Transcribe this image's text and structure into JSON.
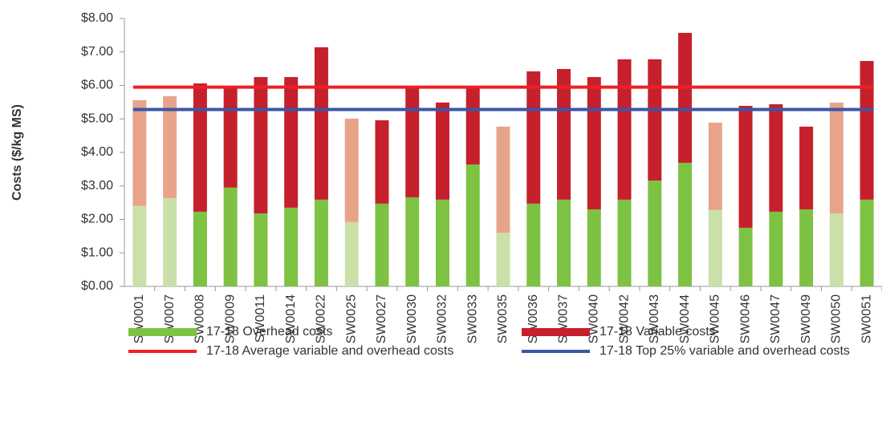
{
  "chart_data": {
    "type": "bar",
    "stacked": true,
    "ylabel": "Costs ($/kg MS)",
    "categories": [
      "SW0001",
      "SW0007",
      "SW0008",
      "SW0009",
      "SW0011",
      "SW0014",
      "SW0022",
      "SW0025",
      "SW0027",
      "SW0030",
      "SW0032",
      "SW0033",
      "SW0035",
      "SW0036",
      "SW0037",
      "SW0040",
      "SW0042",
      "SW0043",
      "SW0044",
      "SW0045",
      "SW0046",
      "SW0047",
      "SW0049",
      "SW0050",
      "SW0051"
    ],
    "series": [
      {
        "name": "17-18 Overhead costs",
        "color": "#7dc242",
        "colors": [
          "#c9e0a8",
          "#c9e0a8",
          "#7dc242",
          "#7dc242",
          "#7dc242",
          "#7dc242",
          "#7dc242",
          "#c9e0a8",
          "#7dc242",
          "#7dc242",
          "#7dc242",
          "#7dc242",
          "#c9e0a8",
          "#7dc242",
          "#7dc242",
          "#7dc242",
          "#7dc242",
          "#7dc242",
          "#7dc242",
          "#c9e0a8",
          "#7dc242",
          "#7dc242",
          "#7dc242",
          "#c9e0a8",
          "#7dc242"
        ],
        "values": [
          2.4,
          2.63,
          2.23,
          2.95,
          2.18,
          2.35,
          2.59,
          1.92,
          2.47,
          2.66,
          2.59,
          3.64,
          1.6,
          2.47,
          2.59,
          2.3,
          2.59,
          3.16,
          3.69,
          2.28,
          1.75,
          2.23,
          2.3,
          2.18,
          2.59
        ]
      },
      {
        "name": "17-18 Variable costs",
        "color": "#c5202c",
        "colors": [
          "#e8a48a",
          "#e8a48a",
          "#c5202c",
          "#c5202c",
          "#c5202c",
          "#c5202c",
          "#c5202c",
          "#e8a48a",
          "#c5202c",
          "#c5202c",
          "#c5202c",
          "#c5202c",
          "#e8a48a",
          "#c5202c",
          "#c5202c",
          "#c5202c",
          "#c5202c",
          "#c5202c",
          "#c5202c",
          "#e8a48a",
          "#c5202c",
          "#c5202c",
          "#c5202c",
          "#e8a48a",
          "#c5202c"
        ],
        "values": [
          3.16,
          3.05,
          3.83,
          3.0,
          4.07,
          3.9,
          4.55,
          3.09,
          2.49,
          3.3,
          2.9,
          2.32,
          3.17,
          3.95,
          3.9,
          3.95,
          4.19,
          3.62,
          3.88,
          2.61,
          3.64,
          3.21,
          2.47,
          3.31,
          4.14
        ]
      }
    ],
    "lines": [
      {
        "name": "17-18 Average variable and overhead costs",
        "color": "#ed2024",
        "value": 5.95
      },
      {
        "name": "17-18 Top 25% variable and overhead costs",
        "color": "#3a56a5",
        "value": 5.28
      }
    ],
    "ylim": [
      0,
      8
    ],
    "yticks": [
      {
        "value": 0,
        "label": "$0.00"
      },
      {
        "value": 1,
        "label": "$1.00"
      },
      {
        "value": 2,
        "label": "$2.00"
      },
      {
        "value": 3,
        "label": "$3.00"
      },
      {
        "value": 4,
        "label": "$4.00"
      },
      {
        "value": 5,
        "label": "$5.00"
      },
      {
        "value": 6,
        "label": "$6.00"
      },
      {
        "value": 7,
        "label": "$7.00"
      },
      {
        "value": 8,
        "label": "$8.00"
      }
    ]
  }
}
